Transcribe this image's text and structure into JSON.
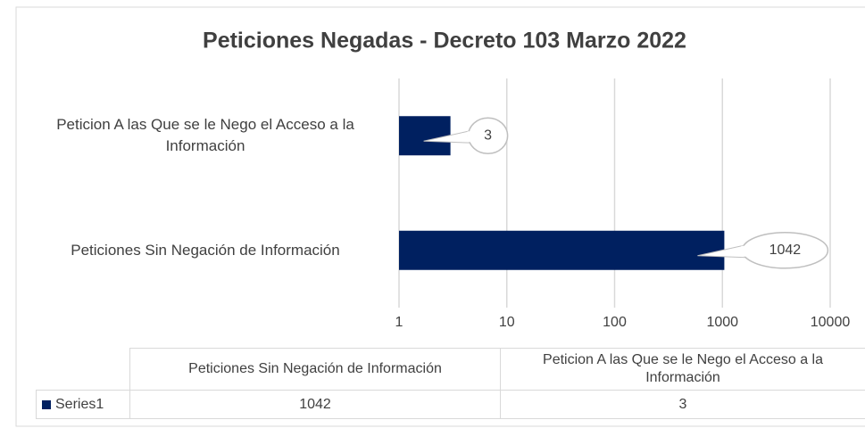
{
  "chart_data": {
    "type": "bar",
    "orientation": "horizontal",
    "title": "Peticiones Negadas - Decreto 103 Marzo 2022",
    "categories": [
      "Peticiones Sin Negación de Información",
      "Peticion A las Que se le Nego el Acceso a la Información"
    ],
    "series": [
      {
        "name": "Series1",
        "color": "#002060",
        "values": [
          1042,
          3
        ]
      }
    ],
    "xlim": [
      1,
      10000
    ],
    "xticks": [
      1,
      10,
      100,
      1000,
      10000
    ],
    "xscale": "log",
    "grid": true
  }
}
